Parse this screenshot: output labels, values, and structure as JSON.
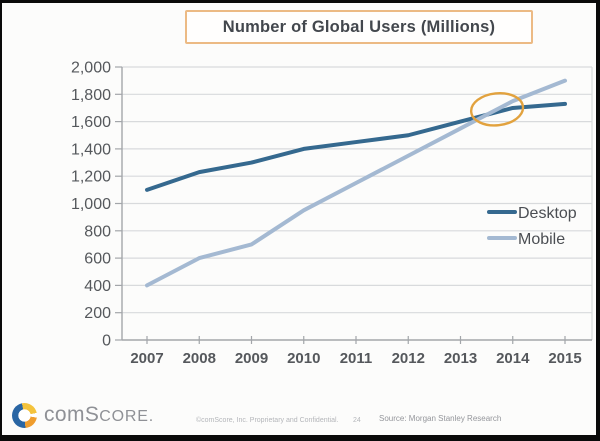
{
  "title": "Number of Global Users (Millions)",
  "footer": {
    "logo_com": "com",
    "logo_s": "S",
    "logo_core": "CORE.",
    "copyright": "©comScore, Inc. Proprietary and Confidential.",
    "page_number": "24",
    "source": "Source: Morgan Stanley Research"
  },
  "colors": {
    "desktop": "#35698f",
    "mobile": "#a4b9d2",
    "highlight": "#e2a23e",
    "title_border": "#ecba84",
    "grid": "#d8dadc",
    "axis": "#a3a6aa",
    "label": "#55585c",
    "legend_text": "#4b4e53"
  },
  "chart_data": {
    "type": "line",
    "title": "Number of Global Users (Millions)",
    "x": [
      2007,
      2008,
      2009,
      2010,
      2011,
      2012,
      2013,
      2014,
      2015
    ],
    "xtick_labels": [
      "2007",
      "2008",
      "2009",
      "2010",
      "2011",
      "2012",
      "2013",
      "2014",
      "2015"
    ],
    "series": [
      {
        "name": "Desktop",
        "values": [
          1100,
          1230,
          1300,
          1400,
          1450,
          1500,
          1600,
          1700,
          1730
        ]
      },
      {
        "name": "Mobile",
        "values": [
          400,
          600,
          700,
          950,
          1150,
          1350,
          1550,
          1750,
          1900
        ]
      }
    ],
    "ylim": [
      0,
      2000
    ],
    "ytick_values": [
      0,
      200,
      400,
      600,
      800,
      1000,
      1200,
      1400,
      1600,
      1800,
      2000
    ],
    "ytick_labels": [
      "0",
      "200",
      "400",
      "600",
      "800",
      "1,000",
      "1,200",
      "1,400",
      "1,600",
      "1,800",
      "2,000"
    ],
    "grid": "horizontal",
    "legend_position": "inside-right",
    "annotation": {
      "shape": "ellipse",
      "x": 2013.7,
      "y": 1690,
      "meaning": "crossover: mobile overtakes desktop"
    }
  }
}
